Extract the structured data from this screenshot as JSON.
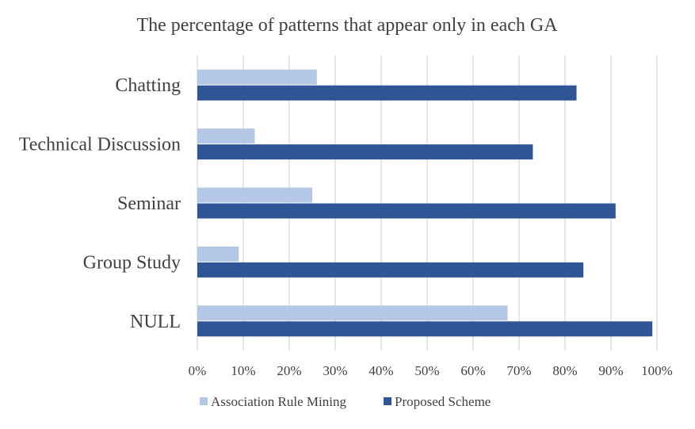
{
  "chart_data": {
    "type": "bar",
    "orientation": "horizontal",
    "title": "The percentage of patterns that appear only in each GA",
    "categories": [
      "Chatting",
      "Technical Discussion",
      "Seminar",
      "Group Study",
      "NULL"
    ],
    "series": [
      {
        "name": "Association Rule Mining",
        "color": "#b4c7e7",
        "values": [
          26,
          12.5,
          25,
          9,
          67.5
        ]
      },
      {
        "name": "Proposed Scheme",
        "color": "#2f5597",
        "values": [
          82.5,
          73,
          91,
          84,
          99
        ]
      }
    ],
    "xlim": [
      0,
      100
    ],
    "xticks": [
      "0%",
      "10%",
      "20%",
      "30%",
      "40%",
      "50%",
      "60%",
      "70%",
      "80%",
      "90%",
      "100%"
    ],
    "grid": true,
    "legend": "bottom"
  }
}
